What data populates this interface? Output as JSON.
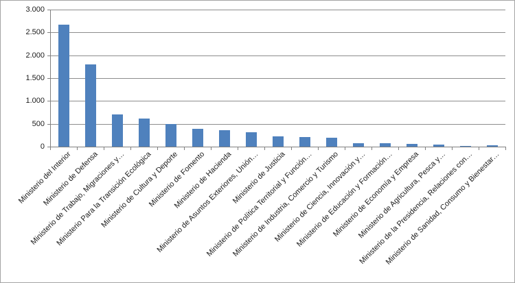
{
  "chart_data": {
    "type": "bar",
    "title": "",
    "xlabel": "",
    "ylabel": "",
    "categories": [
      "Ministerio del Interior",
      "Ministerio de Defensa",
      "Ministerio de Trabajo, Migraciones y…",
      "Ministerio Para la Transición Ecológica",
      "Ministerio de Cultura y Deporte",
      "Ministerio de Fomento",
      "Ministerio de Hacienda",
      "Ministerio de Asuntos Exteriores, Unión…",
      "Ministerio de Justicia",
      "Ministerio de Política Territorial y Función…",
      "Ministerio de Industria, Comercio y Turismo",
      "Ministerio de Ciencia, Innovación y…",
      "Ministerio de Educación y Formación…",
      "Ministerio de Economía y Empresa",
      "Ministerio de Agricultura, Pesca y…",
      "Ministerio de la Presidencia, Relaciones con…",
      "Ministerio de Sanidad, Consumo y Bienestar…"
    ],
    "values": [
      2670,
      1800,
      710,
      620,
      500,
      395,
      360,
      310,
      230,
      205,
      190,
      80,
      70,
      65,
      50,
      20,
      25
    ],
    "ylim": [
      0,
      3000
    ],
    "ytick_step": 500,
    "ytick_labels": [
      "0",
      "500",
      "1.000",
      "1.500",
      "2.000",
      "2.500",
      "3.000"
    ],
    "grid": true,
    "legend": false,
    "colors": {
      "bar": "#4F81BD",
      "gridline": "#8C8C8C",
      "axis": "#7F7F7F",
      "tick_label": "#1A1A1A",
      "background": "#FFFFFF",
      "border": "#A3A3A3"
    }
  }
}
